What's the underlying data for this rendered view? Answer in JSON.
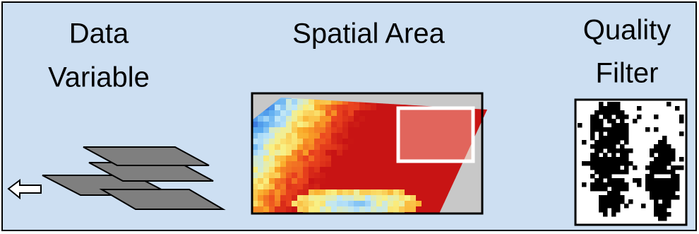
{
  "panels": [
    {
      "lines": [
        "Data",
        "Variable"
      ]
    },
    {
      "lines": [
        "Spatial Area"
      ]
    },
    {
      "lines": [
        "Quality",
        "Filter"
      ]
    }
  ]
}
